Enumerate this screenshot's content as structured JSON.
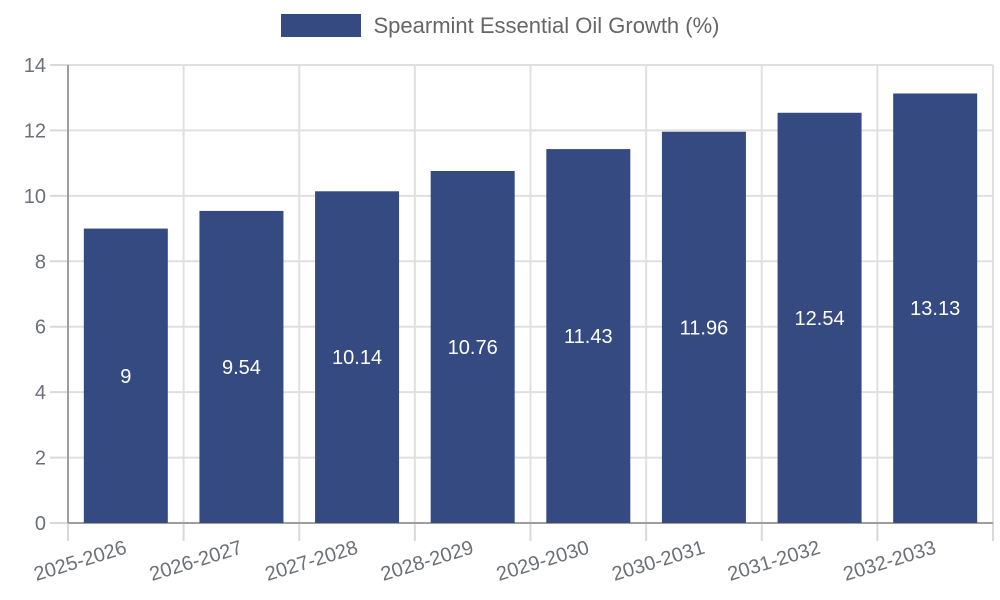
{
  "chart_data": {
    "type": "bar",
    "title": "Spearmint Essential Oil Growth (%)",
    "legend": {
      "entries": [
        "Spearmint Essential Oil Growth (%)"
      ],
      "position": "top-center"
    },
    "categories": [
      "2025-2026",
      "2026-2027",
      "2027-2028",
      "2028-2029",
      "2029-2030",
      "2030-2031",
      "2031-2032",
      "2032-2033"
    ],
    "series": [
      {
        "name": "Spearmint Essential Oil Growth (%)",
        "values": [
          9,
          9.54,
          10.14,
          10.76,
          11.43,
          11.96,
          12.54,
          13.13
        ]
      }
    ],
    "bar_value_labels": [
      "9",
      "9.54",
      "10.14",
      "10.76",
      "11.43",
      "11.96",
      "12.54",
      "13.13"
    ],
    "xlabel": "",
    "ylabel": "",
    "ylim": [
      0,
      14
    ],
    "yticks": [
      0,
      2,
      4,
      6,
      8,
      10,
      12,
      14
    ],
    "grid": true,
    "x_label_rotation_deg": -17,
    "colors": {
      "bar": "#364a82",
      "grid": "#e0e0e0",
      "tick": "#d9d9d9",
      "axis": "#9e9e9e",
      "tick_label": "#6e7079",
      "bar_label": "#ffffff",
      "legend_text": "#666666",
      "background": "#ffffff"
    }
  }
}
